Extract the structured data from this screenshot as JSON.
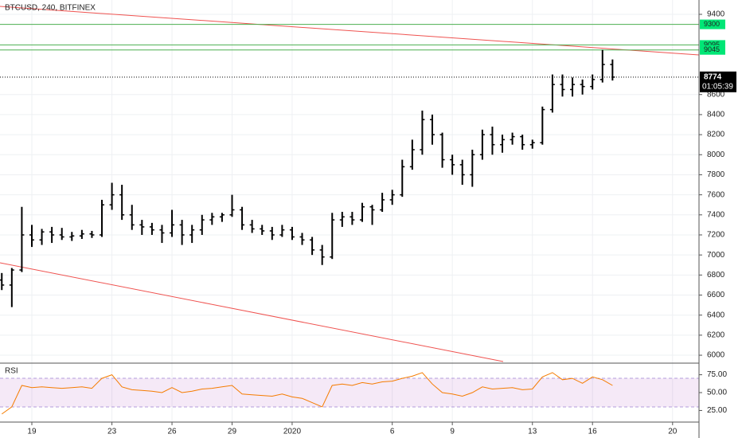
{
  "chart_data": {
    "type": "ohlc",
    "title": "BTCUSD, 240, BITFINEX",
    "color": "#000000",
    "x": [
      -1.5,
      -1.0,
      -0.5,
      0,
      0.5,
      1.0,
      1.5,
      2.0,
      2.5,
      3.0,
      3.5,
      4.0,
      4.5,
      5.0,
      5.5,
      6.0,
      6.5,
      7.0,
      7.5,
      8.0,
      8.5,
      9.0,
      9.5,
      10.0,
      10.5,
      11.0,
      11.5,
      12.0,
      12.5,
      13.0,
      13.5,
      14.0,
      14.5,
      15.0,
      15.5,
      16.0,
      16.5,
      17.0,
      17.5,
      18.0,
      18.5,
      19.0,
      19.5,
      20.0,
      20.5,
      21.0,
      21.5,
      22.0,
      22.5,
      23.0,
      23.5,
      24.0,
      24.5,
      25.0,
      25.5,
      26.0,
      26.5,
      27.0,
      27.5,
      28.0,
      28.5,
      29.0
    ],
    "open": [
      6750,
      6700,
      6850,
      7200,
      7150,
      7230,
      7200,
      7180,
      7190,
      7210,
      7200,
      7500,
      7600,
      7400,
      7300,
      7280,
      7250,
      7220,
      7300,
      7200,
      7250,
      7350,
      7380,
      7400,
      7450,
      7300,
      7260,
      7240,
      7200,
      7250,
      7180,
      7150,
      7050,
      6980,
      7350,
      7380,
      7350,
      7480,
      7450,
      7550,
      7600,
      7880,
      8050,
      8350,
      8200,
      7950,
      7900,
      7800,
      8000,
      8200,
      8100,
      8150,
      8180,
      8100,
      8120,
      8450,
      8700,
      8650,
      8700,
      8680,
      8750,
      8900
    ],
    "high": [
      6820,
      6870,
      7480,
      7300,
      7260,
      7280,
      7270,
      7230,
      7250,
      7240,
      7550,
      7720,
      7700,
      7500,
      7350,
      7320,
      7300,
      7450,
      7350,
      7300,
      7400,
      7420,
      7420,
      7600,
      7480,
      7350,
      7300,
      7280,
      7300,
      7280,
      7220,
      7180,
      7100,
      7420,
      7430,
      7430,
      7520,
      7500,
      7620,
      7650,
      7950,
      8150,
      8440,
      8400,
      8220,
      8000,
      7950,
      8050,
      8250,
      8280,
      8200,
      8220,
      8200,
      8150,
      8480,
      8800,
      8800,
      8770,
      8750,
      8800,
      9045,
      8950
    ],
    "low": [
      6650,
      6480,
      6830,
      7080,
      7100,
      7120,
      7150,
      7140,
      7160,
      7170,
      7180,
      7450,
      7350,
      7250,
      7200,
      7200,
      7120,
      7180,
      7100,
      7120,
      7200,
      7300,
      7330,
      7380,
      7250,
      7220,
      7200,
      7150,
      7180,
      7150,
      7100,
      7000,
      6900,
      6960,
      7280,
      7300,
      7330,
      7300,
      7430,
      7500,
      7580,
      7850,
      8000,
      8100,
      7870,
      7800,
      7700,
      7680,
      7950,
      8000,
      8020,
      8100,
      8050,
      8060,
      8100,
      8420,
      8580,
      8580,
      8600,
      8650,
      8720,
      8740
    ],
    "close": [
      6700,
      6850,
      7200,
      7150,
      7230,
      7200,
      7180,
      7190,
      7210,
      7200,
      7500,
      7600,
      7400,
      7300,
      7280,
      7250,
      7220,
      7300,
      7200,
      7250,
      7350,
      7380,
      7400,
      7450,
      7300,
      7260,
      7240,
      7200,
      7250,
      7180,
      7150,
      7050,
      6980,
      7350,
      7380,
      7350,
      7480,
      7450,
      7550,
      7600,
      7880,
      8050,
      8350,
      8200,
      7950,
      7900,
      7800,
      8000,
      8200,
      8100,
      8150,
      8180,
      8100,
      8120,
      8450,
      8700,
      8650,
      8700,
      8680,
      8750,
      8900,
      8774
    ],
    "xlim": [
      -1.59,
      33.32
    ],
    "xticks": [
      {
        "value": 0,
        "label": "19"
      },
      {
        "value": 4,
        "label": "23"
      },
      {
        "value": 7,
        "label": "26"
      },
      {
        "value": 10,
        "label": "29"
      },
      {
        "value": 13,
        "label": "2020"
      },
      {
        "value": 18,
        "label": "6"
      },
      {
        "value": 21,
        "label": "9"
      },
      {
        "value": 25,
        "label": "13"
      },
      {
        "value": 28,
        "label": "16"
      },
      {
        "value": 32,
        "label": "20"
      }
    ],
    "ylim": [
      5929,
      9543
    ],
    "yticks": [
      9400,
      8600,
      8400,
      8200,
      8000,
      7800,
      7600,
      7400,
      7200,
      7000,
      6800,
      6600,
      6400,
      6200,
      6000
    ],
    "grid": true,
    "levels": [
      9300,
      9095,
      9045
    ],
    "level_color": "#4caf50",
    "trend_color": "#ef5350",
    "trendlines": [
      [
        [
          -1.59,
          9479
        ],
        [
          33.32,
          8995
        ]
      ],
      [
        [
          -1.59,
          6922
        ],
        [
          23.54,
          5937
        ]
      ]
    ],
    "last_price": 8774,
    "countdown": "01:05:39",
    "rsi": {
      "title": "RSI",
      "color": "#f57c00",
      "values": [
        20,
        30,
        60,
        57,
        58,
        57,
        56,
        57,
        58,
        56,
        70,
        75,
        58,
        54,
        53,
        52,
        50,
        57,
        50,
        52,
        55,
        56,
        58,
        60,
        48,
        47,
        46,
        45,
        48,
        44,
        42,
        36,
        30,
        60,
        62,
        60,
        64,
        62,
        65,
        66,
        70,
        73,
        78,
        62,
        50,
        48,
        45,
        50,
        58,
        55,
        56,
        57,
        54,
        55,
        72,
        78,
        68,
        70,
        63,
        72,
        68,
        60
      ],
      "ylim": [
        11,
        89
      ],
      "yticks": [
        {
          "value": 75,
          "label": "75.00"
        },
        {
          "value": 50,
          "label": "50.00"
        },
        {
          "value": 25,
          "label": "25.00"
        }
      ],
      "band": [
        30,
        70
      ],
      "band_color": "#9c27b0"
    }
  }
}
